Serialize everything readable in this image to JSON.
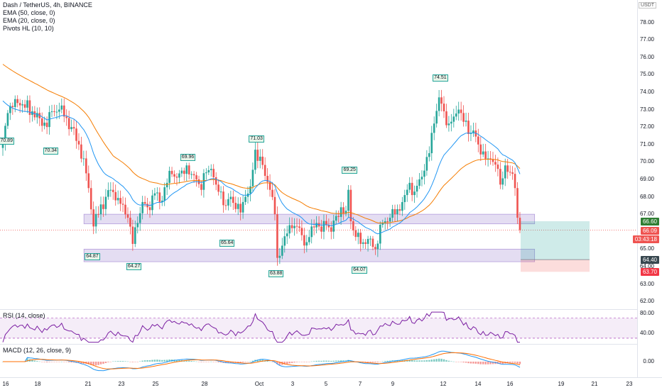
{
  "header": {
    "symbol_line": "Dash / TetherUS, 4h, BINANCE",
    "ema50": "EMA (50, close, 0)",
    "ema20": "EMA (20, close, 0)",
    "pivots": "Pivots HL (10, 10)",
    "currency": "USDT"
  },
  "rsi": {
    "label": "RSI (14, close)",
    "ticks": [
      "80.00",
      "40.00"
    ]
  },
  "macd": {
    "label": "MACD (12, 26, close, 9)",
    "ticks": [
      "0.00"
    ]
  },
  "badges": {
    "target": "66.60",
    "current": "66.09",
    "countdown": "03:43:18",
    "entry": "64.40",
    "stop": "63.70"
  },
  "colors": {
    "up": "#26a69a",
    "down": "#ef5350",
    "ema50": "#f57c00",
    "ema20": "#2196f3",
    "zone": "#b39ddb",
    "rsi": "#7b1fa2"
  },
  "chart_data": [
    {
      "type": "candlestick",
      "title": "Dash / TetherUS, 4h, BINANCE",
      "ylim": [
        61.6,
        79.2
      ],
      "y_ticks": [
        "78.00",
        "77.00",
        "76.00",
        "75.00",
        "74.00",
        "73.00",
        "72.00",
        "71.00",
        "70.00",
        "69.00",
        "68.00",
        "67.00",
        "65.00",
        "64.00",
        "63.00",
        "62.00"
      ],
      "x_ticks": [
        "16",
        "18",
        "21",
        "23",
        "25",
        "28",
        "Oct",
        "3",
        "5",
        "7",
        "9",
        "12",
        "14",
        "16",
        "19",
        "21",
        "23"
      ],
      "pivot_labels": [
        {
          "text": "70.89",
          "x": 1,
          "price": 70.89
        },
        {
          "text": "70.34",
          "x": 19,
          "price": 70.34
        },
        {
          "text": "64.87",
          "x": 36,
          "price": 64.87
        },
        {
          "text": "64.27",
          "x": 53,
          "price": 64.27
        },
        {
          "text": "69.96",
          "x": 75,
          "price": 69.96
        },
        {
          "text": "65.64",
          "x": 91,
          "price": 65.64
        },
        {
          "text": "71.03",
          "x": 103,
          "price": 71.03
        },
        {
          "text": "63.88",
          "x": 111,
          "price": 63.88
        },
        {
          "text": "69.25",
          "x": 141,
          "price": 69.25
        },
        {
          "text": "64.07",
          "x": 145,
          "price": 64.07
        },
        {
          "text": "74.51",
          "x": 178,
          "price": 74.51
        }
      ],
      "zones": [
        {
          "top": 67.0,
          "bottom": 66.45
        },
        {
          "top": 65.0,
          "bottom": 64.28
        }
      ],
      "position": {
        "entry": 64.4,
        "target": 66.6,
        "stop": 63.7
      },
      "anchors": [
        [
          0,
          71.0
        ],
        [
          2,
          72.8
        ],
        [
          5,
          73.6
        ],
        [
          8,
          73.3
        ],
        [
          12,
          72.9
        ],
        [
          15,
          72.5
        ],
        [
          18,
          72.0
        ],
        [
          20,
          72.9
        ],
        [
          23,
          73.0
        ],
        [
          25,
          72.6
        ],
        [
          28,
          72.0
        ],
        [
          31,
          71.0
        ],
        [
          33,
          70.2
        ],
        [
          35,
          68.5
        ],
        [
          37,
          66.3
        ],
        [
          39,
          67.0
        ],
        [
          42,
          68.0
        ],
        [
          44,
          68.4
        ],
        [
          46,
          67.8
        ],
        [
          48,
          67.6
        ],
        [
          51,
          66.8
        ],
        [
          53,
          65.3
        ],
        [
          55,
          66.5
        ],
        [
          57,
          67.7
        ],
        [
          59,
          67.4
        ],
        [
          62,
          68.2
        ],
        [
          64,
          67.7
        ],
        [
          67,
          68.8
        ],
        [
          69,
          69.3
        ],
        [
          71,
          69.1
        ],
        [
          73,
          69.5
        ],
        [
          75,
          69.8
        ],
        [
          77,
          69.3
        ],
        [
          79,
          69.0
        ],
        [
          81,
          68.4
        ],
        [
          83,
          69.4
        ],
        [
          85,
          69.6
        ],
        [
          87,
          68.7
        ],
        [
          89,
          68.3
        ],
        [
          91,
          67.5
        ],
        [
          93,
          68.0
        ],
        [
          95,
          67.3
        ],
        [
          97,
          67.1
        ],
        [
          99,
          68.0
        ],
        [
          101,
          68.6
        ],
        [
          103,
          70.7
        ],
        [
          105,
          70.3
        ],
        [
          107,
          69.2
        ],
        [
          109,
          68.4
        ],
        [
          111,
          67.0
        ],
        [
          112,
          64.5
        ],
        [
          114,
          65.2
        ],
        [
          116,
          65.9
        ],
        [
          118,
          66.2
        ],
        [
          120,
          66.3
        ],
        [
          122,
          65.8
        ],
        [
          124,
          65.4
        ],
        [
          126,
          66.3
        ],
        [
          128,
          66.5
        ],
        [
          130,
          66.0
        ],
        [
          132,
          66.4
        ],
        [
          134,
          66.0
        ],
        [
          136,
          66.9
        ],
        [
          138,
          67.4
        ],
        [
          140,
          67.2
        ],
        [
          141,
          68.4
        ],
        [
          142,
          66.6
        ],
        [
          144,
          65.7
        ],
        [
          146,
          65.3
        ],
        [
          148,
          65.3
        ],
        [
          150,
          65.6
        ],
        [
          152,
          65.0
        ],
        [
          154,
          66.4
        ],
        [
          156,
          66.6
        ],
        [
          158,
          66.8
        ],
        [
          160,
          67.0
        ],
        [
          162,
          67.2
        ],
        [
          164,
          68.1
        ],
        [
          166,
          68.8
        ],
        [
          168,
          68.3
        ],
        [
          170,
          69.0
        ],
        [
          172,
          69.5
        ],
        [
          174,
          70.5
        ],
        [
          176,
          72.2
        ],
        [
          178,
          73.7
        ],
        [
          180,
          72.9
        ],
        [
          182,
          72.2
        ],
        [
          184,
          72.6
        ],
        [
          186,
          73.0
        ],
        [
          188,
          72.3
        ],
        [
          190,
          71.6
        ],
        [
          192,
          71.8
        ],
        [
          194,
          71.0
        ],
        [
          196,
          70.6
        ],
        [
          198,
          70.2
        ],
        [
          200,
          70.0
        ],
        [
          202,
          69.6
        ],
        [
          203,
          68.7
        ],
        [
          205,
          69.8
        ],
        [
          207,
          69.4
        ],
        [
          209,
          68.5
        ],
        [
          210,
          66.8
        ],
        [
          211,
          66.09
        ]
      ],
      "ema20_ends": [
        73.5,
        69.0
      ],
      "ema50_ends": [
        75.6,
        69.0
      ]
    },
    {
      "type": "line",
      "title": "RSI (14, close)",
      "ylim": [
        20,
        85
      ],
      "band": [
        30,
        70
      ],
      "y_ticks": [
        "80.00",
        "40.00"
      ]
    },
    {
      "type": "bar",
      "title": "MACD (12, 26, close, 9)",
      "y_ticks": [
        "0.00"
      ]
    }
  ]
}
